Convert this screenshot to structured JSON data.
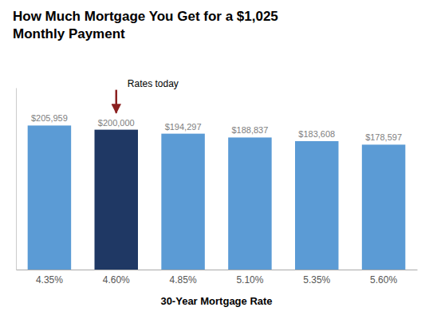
{
  "chart_data": {
    "type": "bar",
    "title": "How Much Mortgage You Get for a $1,025\nMonthly Payment",
    "xlabel": "30-Year Mortgage Rate",
    "categories": [
      "4.35%",
      "4.60%",
      "4.85%",
      "5.10%",
      "5.35%",
      "5.60%"
    ],
    "values": [
      205959,
      200000,
      194297,
      188837,
      183608,
      178597
    ],
    "value_labels": [
      "$205,959",
      "$200,000",
      "$194,297",
      "$188,837",
      "$183,608",
      "$178,597"
    ],
    "colors": [
      "#5b9bd5",
      "#1f3864",
      "#5b9bd5",
      "#5b9bd5",
      "#5b9bd5",
      "#5b9bd5"
    ],
    "ylim": [
      0,
      260000
    ],
    "data_labels": true,
    "tick_labels": "x",
    "grid": false,
    "annotations": [
      {
        "text": "Rates today",
        "category": "4.60%",
        "color": "#8b2020"
      }
    ]
  }
}
